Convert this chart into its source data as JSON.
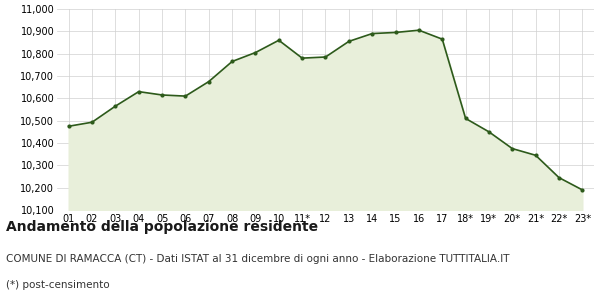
{
  "x_labels": [
    "01",
    "02",
    "03",
    "04",
    "05",
    "06",
    "07",
    "08",
    "09",
    "10",
    "11*",
    "12",
    "13",
    "14",
    "15",
    "16",
    "17",
    "18*",
    "19*",
    "20*",
    "21*",
    "22*",
    "23*"
  ],
  "y_values": [
    10475,
    10493,
    10565,
    10630,
    10615,
    10610,
    10675,
    10765,
    10805,
    10860,
    10780,
    10785,
    10855,
    10890,
    10895,
    10905,
    10865,
    10510,
    10450,
    10375,
    10345,
    10245,
    10190
  ],
  "line_color": "#2d5a1b",
  "fill_color": "#e8efda",
  "marker_color": "#2d5a1b",
  "background_color": "#ffffff",
  "grid_color": "#d0d0d0",
  "ylim": [
    10100,
    11000
  ],
  "yticks": [
    10100,
    10200,
    10300,
    10400,
    10500,
    10600,
    10700,
    10800,
    10900,
    11000
  ],
  "title": "Andamento della popolazione residente",
  "subtitle": "COMUNE DI RAMACCA (CT) - Dati ISTAT al 31 dicembre di ogni anno - Elaborazione TUTTITALIA.IT",
  "footnote": "(*) post-censimento",
  "title_fontsize": 10,
  "subtitle_fontsize": 7.5,
  "footnote_fontsize": 7.5,
  "tick_fontsize": 7,
  "line_width": 1.2,
  "marker_size": 3.0
}
